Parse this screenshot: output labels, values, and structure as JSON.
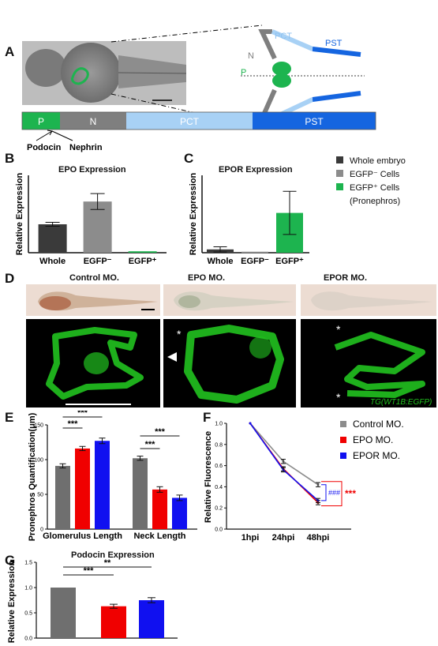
{
  "panels": {
    "A": "A",
    "B": "B",
    "C": "C",
    "D": "D",
    "E": "E",
    "F": "F",
    "G": "G"
  },
  "panel_a": {
    "labels": {
      "pct": "PCT",
      "pst": "PST",
      "n": "N",
      "p": "P"
    },
    "segments": [
      {
        "label": "P",
        "color": "#1db44f"
      },
      {
        "label": "N",
        "color": "#7f7f7f"
      },
      {
        "label": "PCT",
        "color": "#a8d1f5"
      },
      {
        "label": "PST",
        "color": "#1565e0"
      }
    ],
    "podocin": "Podocin",
    "nephrin": "Nephrin"
  },
  "legend_bc": [
    {
      "label": "Whole embryo",
      "color": "#3a3a3a"
    },
    {
      "label": "EGFP⁻ Cells",
      "color": "#8c8c8c"
    },
    {
      "label": "EGFP⁺ Cells",
      "color": "#1db44f"
    },
    {
      "label": "(Pronephros)",
      "color": ""
    }
  ],
  "panel_d": {
    "control": "Control MO.",
    "epo": "EPO MO.",
    "epor": "EPOR MO.",
    "transgene": "TG(WT1B:EGFP)",
    "star": "*"
  },
  "chart_data": [
    {
      "type": "bar",
      "title": "EPO Expression",
      "ylabel": "Relative Expression",
      "categories": [
        "Whole",
        "EGFP⁻",
        "EGFP⁺"
      ],
      "values": [
        1.0,
        1.8,
        0.05
      ],
      "errors": [
        0.07,
        0.28,
        0.01
      ],
      "colors": [
        "#3a3a3a",
        "#8c8c8c",
        "#1db44f"
      ]
    },
    {
      "type": "bar",
      "title": "EPOR Expression",
      "ylabel": "Relative Expression",
      "categories": [
        "Whole",
        "EGFP⁻",
        "EGFP⁺"
      ],
      "values": [
        0.1,
        0.03,
        1.2
      ],
      "errors": [
        0.08,
        0.01,
        0.65
      ],
      "colors": [
        "#3a3a3a",
        "#8c8c8c",
        "#1db44f"
      ]
    },
    {
      "type": "bar",
      "ylabel": "Pronephros Quantification(μm)",
      "groups": [
        "Glomerulus Length",
        "Neck Length"
      ],
      "series": [
        {
          "name": "Control MO.",
          "color": "#6f6f6f",
          "values": [
            91,
            102
          ],
          "errors": [
            3,
            3
          ]
        },
        {
          "name": "EPO MO.",
          "color": "#f00000",
          "values": [
            116,
            57
          ],
          "errors": [
            3,
            4
          ]
        },
        {
          "name": "EPOR MO.",
          "color": "#1010f0",
          "values": [
            127,
            45
          ],
          "errors": [
            4,
            4
          ]
        }
      ],
      "ylim": [
        0,
        150
      ],
      "yticks": [
        0,
        50,
        100,
        150
      ],
      "significance": [
        "***",
        "***",
        "***",
        "***"
      ]
    },
    {
      "type": "line",
      "ylabel": "Relative Fluorescence",
      "x": [
        "1hpi",
        "24hpi",
        "48hpi"
      ],
      "series": [
        {
          "name": "Control MO.",
          "color": "#8c8c8c",
          "values": [
            1.0,
            0.64,
            0.42
          ],
          "errors": [
            0,
            0.02,
            0.02
          ]
        },
        {
          "name": "EPO MO.",
          "color": "#f00000",
          "values": [
            1.0,
            0.57,
            0.25
          ],
          "errors": [
            0,
            0.02,
            0.02
          ]
        },
        {
          "name": "EPOR MO.",
          "color": "#1010f0",
          "values": [
            1.0,
            0.56,
            0.27
          ],
          "errors": [
            0,
            0.02,
            0.02
          ]
        }
      ],
      "ylim": [
        0,
        1.0
      ],
      "yticks": [
        "0.0",
        "0.2",
        "0.4",
        "0.6",
        "0.8",
        "1.0"
      ],
      "significance": [
        {
          "text": "###",
          "color": "#1010f0"
        },
        {
          "text": "***",
          "color": "#f00000"
        }
      ]
    },
    {
      "type": "bar",
      "title": "Podocin Expression",
      "ylabel": "Relative Expression",
      "values": [
        1.0,
        0.63,
        0.75
      ],
      "errors": [
        0,
        0.04,
        0.05
      ],
      "colors": [
        "#6f6f6f",
        "#f00000",
        "#1010f0"
      ],
      "ylim": [
        0,
        1.5
      ],
      "yticks": [
        "0.0",
        "0.5",
        "1.0",
        "1.5"
      ],
      "significance": [
        "***",
        "**"
      ]
    }
  ]
}
